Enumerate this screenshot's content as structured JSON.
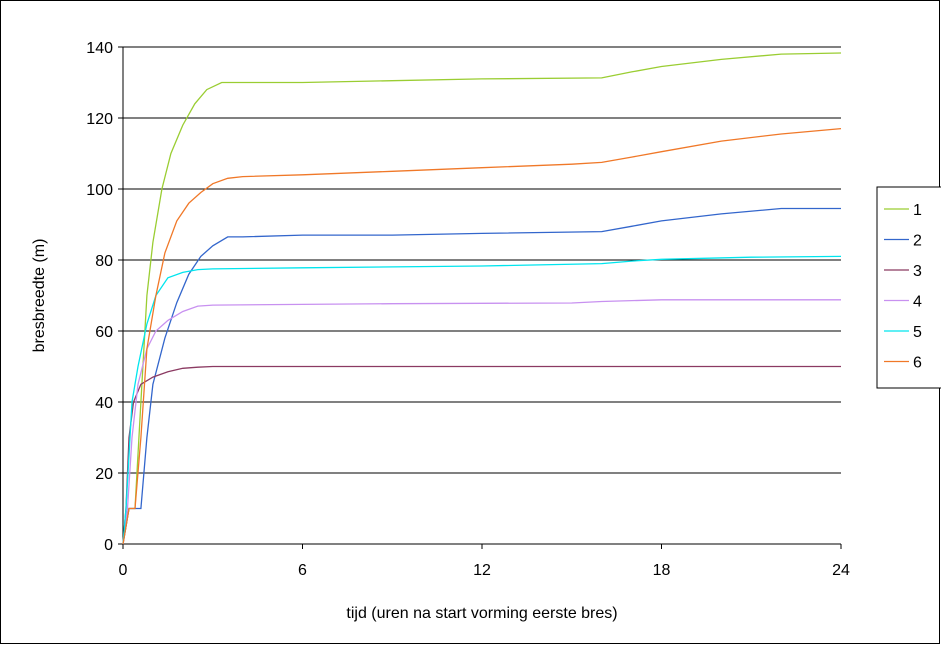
{
  "chart_data": {
    "type": "line",
    "title": "",
    "xlabel": "tijd (uren na start vorming eerste bres)",
    "ylabel": "bresbreedte (m)",
    "xlim": [
      0,
      24
    ],
    "ylim": [
      0,
      140
    ],
    "xticks": [
      0,
      6,
      12,
      18,
      24
    ],
    "yticks": [
      0,
      20,
      40,
      60,
      80,
      100,
      120,
      140
    ],
    "xtick_labels": [
      "0",
      "6",
      "12",
      "18",
      "24"
    ],
    "ytick_labels": [
      "0",
      "20",
      "40",
      "60",
      "80",
      "100",
      "120",
      "140"
    ],
    "grid": "horizontal",
    "legend_position": "right",
    "series": [
      {
        "name": "1",
        "color": "#9acd32",
        "points": [
          [
            0,
            0
          ],
          [
            0.2,
            10
          ],
          [
            0.4,
            10
          ],
          [
            0.6,
            40
          ],
          [
            0.8,
            70
          ],
          [
            1,
            85
          ],
          [
            1.3,
            100
          ],
          [
            1.6,
            110
          ],
          [
            2,
            118
          ],
          [
            2.4,
            124
          ],
          [
            2.8,
            128
          ],
          [
            3.3,
            130
          ],
          [
            4,
            130
          ],
          [
            6,
            130
          ],
          [
            9,
            130.5
          ],
          [
            12,
            131
          ],
          [
            16,
            131.3
          ],
          [
            17,
            133
          ],
          [
            18,
            134.5
          ],
          [
            20,
            136.5
          ],
          [
            22,
            138
          ],
          [
            24,
            138.3
          ]
        ]
      },
      {
        "name": "2",
        "color": "#3366cc",
        "points": [
          [
            0,
            0
          ],
          [
            0.2,
            10
          ],
          [
            0.5,
            10
          ],
          [
            0.6,
            10
          ],
          [
            0.8,
            30
          ],
          [
            1,
            45
          ],
          [
            1.4,
            58
          ],
          [
            1.8,
            68
          ],
          [
            2.2,
            76
          ],
          [
            2.6,
            81
          ],
          [
            3,
            84
          ],
          [
            3.5,
            86.5
          ],
          [
            4,
            86.5
          ],
          [
            6,
            87
          ],
          [
            9,
            87
          ],
          [
            12,
            87.5
          ],
          [
            16,
            88
          ],
          [
            17,
            89.5
          ],
          [
            18,
            91
          ],
          [
            20,
            93
          ],
          [
            22,
            94.5
          ],
          [
            24,
            94.5
          ]
        ]
      },
      {
        "name": "3",
        "color": "#8b3a62",
        "points": [
          [
            0,
            0
          ],
          [
            0.1,
            10
          ],
          [
            0.2,
            30
          ],
          [
            0.35,
            40
          ],
          [
            0.6,
            45
          ],
          [
            1,
            47
          ],
          [
            1.5,
            48.5
          ],
          [
            2,
            49.5
          ],
          [
            2.5,
            49.8
          ],
          [
            3,
            50
          ],
          [
            6,
            50
          ],
          [
            12,
            50
          ],
          [
            18,
            50
          ],
          [
            24,
            50
          ]
        ]
      },
      {
        "name": "4",
        "color": "#c891f0",
        "points": [
          [
            0,
            0
          ],
          [
            0.15,
            10
          ],
          [
            0.3,
            30
          ],
          [
            0.5,
            45
          ],
          [
            0.8,
            55
          ],
          [
            1.1,
            60
          ],
          [
            1.5,
            63
          ],
          [
            2,
            65.5
          ],
          [
            2.5,
            67
          ],
          [
            3,
            67.3
          ],
          [
            6,
            67.5
          ],
          [
            9,
            67.7
          ],
          [
            12,
            67.8
          ],
          [
            15,
            67.9
          ],
          [
            16,
            68.3
          ],
          [
            18,
            68.8
          ],
          [
            24,
            68.8
          ]
        ]
      },
      {
        "name": "5",
        "color": "#00e5ee",
        "points": [
          [
            0,
            0
          ],
          [
            0.1,
            10
          ],
          [
            0.2,
            25
          ],
          [
            0.3,
            40
          ],
          [
            0.5,
            50
          ],
          [
            0.8,
            62
          ],
          [
            1.1,
            70
          ],
          [
            1.5,
            75
          ],
          [
            2,
            76.5
          ],
          [
            2.5,
            77.3
          ],
          [
            3,
            77.5
          ],
          [
            6,
            77.8
          ],
          [
            12,
            78.3
          ],
          [
            16,
            79
          ],
          [
            17,
            79.7
          ],
          [
            18,
            80.2
          ],
          [
            21,
            80.8
          ],
          [
            24,
            81
          ]
        ]
      },
      {
        "name": "6",
        "color": "#f07828",
        "points": [
          [
            0,
            0
          ],
          [
            0.2,
            10
          ],
          [
            0.4,
            10
          ],
          [
            0.6,
            30
          ],
          [
            0.8,
            55
          ],
          [
            1.1,
            70
          ],
          [
            1.4,
            82
          ],
          [
            1.8,
            91
          ],
          [
            2.2,
            96
          ],
          [
            2.6,
            99
          ],
          [
            3,
            101.5
          ],
          [
            3.5,
            103
          ],
          [
            4,
            103.5
          ],
          [
            6,
            104
          ],
          [
            9,
            105
          ],
          [
            12,
            106
          ],
          [
            15,
            107
          ],
          [
            16,
            107.5
          ],
          [
            17,
            109
          ],
          [
            18,
            110.5
          ],
          [
            20,
            113.5
          ],
          [
            22,
            115.5
          ],
          [
            24,
            117
          ]
        ]
      }
    ]
  }
}
